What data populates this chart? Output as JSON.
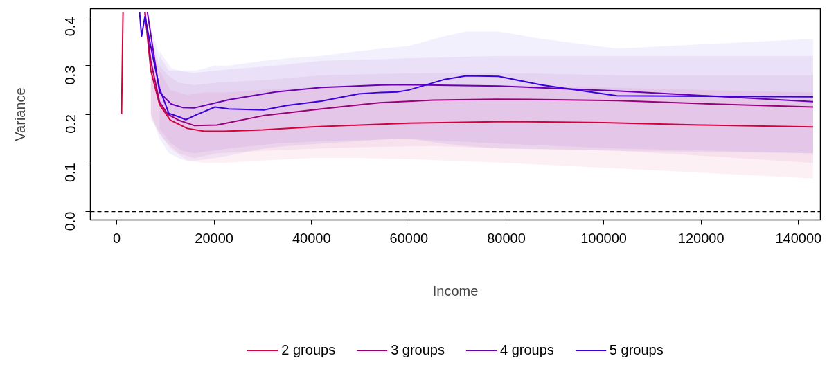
{
  "chart_data": {
    "type": "line",
    "xlabel": "Income",
    "ylabel": "Variance",
    "xlim": [
      -5400,
      144500
    ],
    "ylim": [
      -0.017,
      0.417
    ],
    "xticks": [
      0,
      20000,
      40000,
      60000,
      80000,
      100000,
      120000,
      140000
    ],
    "yticks": [
      {
        "value": 0,
        "label": "0.0"
      },
      0.1,
      0.2,
      0.3,
      0.4
    ],
    "grid": false,
    "legend": "bottom",
    "line_style": "solid",
    "marker": "none",
    "ref_lines": [
      {
        "axis": "y",
        "value": 0,
        "line_style": "dashed",
        "color": "#000000"
      }
    ],
    "series": [
      {
        "name": "2 groups",
        "color": "#d6003c",
        "x": [
          1000,
          1300,
          1400,
          5800,
          7000,
          8800,
          11000,
          14500,
          18000,
          22000,
          30000,
          40000,
          50000,
          60000,
          80000,
          100000,
          120000,
          143000
        ],
        "values": [
          0.2,
          0.41,
          null,
          0.41,
          0.29,
          0.22,
          0.188,
          0.171,
          0.165,
          0.165,
          0.168,
          0.174,
          0.178,
          0.182,
          0.185,
          0.183,
          0.178,
          0.174
        ],
        "lower": [
          null,
          null,
          null,
          null,
          0.2,
          0.16,
          0.13,
          0.105,
          0.1,
          0.1,
          0.105,
          0.11,
          0.11,
          0.108,
          0.1,
          0.09,
          0.08,
          0.068
        ],
        "upper": [
          null,
          null,
          null,
          null,
          0.35,
          0.29,
          0.25,
          0.24,
          0.245,
          0.245,
          0.25,
          0.255,
          0.258,
          0.26,
          0.26,
          0.255,
          0.25,
          0.245
        ]
      },
      {
        "name": "3 groups",
        "color": "#9c0078",
        "x": [
          5800,
          7000,
          8800,
          10500,
          12700,
          15900,
          20600,
          30000,
          42000,
          54000,
          65000,
          78000,
          90000,
          103000,
          120000,
          143000
        ],
        "values": [
          0.41,
          0.31,
          0.225,
          0.2,
          0.188,
          0.177,
          0.178,
          0.197,
          0.211,
          0.224,
          0.229,
          0.231,
          0.23,
          0.228,
          0.222,
          0.215
        ],
        "lower": [
          null,
          0.19,
          0.16,
          0.14,
          0.12,
          0.11,
          0.12,
          0.125,
          0.13,
          0.133,
          0.135,
          0.13,
          0.128,
          0.125,
          0.115,
          0.1
        ],
        "upper": [
          null,
          0.36,
          0.3,
          0.28,
          0.265,
          0.26,
          0.265,
          0.27,
          0.28,
          0.283,
          0.285,
          0.285,
          0.283,
          0.28,
          0.28,
          0.28
        ]
      },
      {
        "name": "4 groups",
        "color": "#6a00b4",
        "x": [
          6300,
          8800,
          11200,
          13500,
          15900,
          23000,
          32600,
          42000,
          54300,
          58900,
          78400,
          102700,
          143000
        ],
        "values": [
          0.41,
          0.245,
          0.221,
          0.214,
          0.213,
          0.23,
          0.246,
          0.255,
          0.26,
          0.261,
          0.258,
          0.248,
          0.226
        ],
        "lower": [
          null,
          0.17,
          0.14,
          0.125,
          0.12,
          0.13,
          0.14,
          0.145,
          0.148,
          0.15,
          0.14,
          0.13,
          0.12
        ],
        "upper": [
          null,
          0.33,
          0.295,
          0.288,
          0.285,
          0.292,
          0.3,
          0.31,
          0.313,
          0.315,
          0.32,
          0.32,
          0.32
        ]
      },
      {
        "name": "5 groups",
        "color": "#3a00e0",
        "x": [
          4700,
          5100,
          5800,
          7000,
          8800,
          10700,
          12700,
          14200,
          16400,
          20200,
          23000,
          30200,
          34900,
          42000,
          49700,
          54300,
          57600,
          60000,
          67100,
          71800,
          78400,
          87300,
          102700,
          143000
        ],
        "values": [
          0.41,
          0.36,
          0.401,
          0.339,
          0.253,
          0.202,
          0.195,
          0.189,
          0.199,
          0.215,
          0.211,
          0.209,
          0.218,
          0.227,
          0.242,
          0.245,
          0.246,
          0.25,
          0.271,
          0.279,
          0.278,
          0.26,
          0.238,
          0.236
        ],
        "lower": [
          null,
          null,
          null,
          0.2,
          0.15,
          0.12,
          0.11,
          0.105,
          0.105,
          0.11,
          0.115,
          0.13,
          0.135,
          0.14,
          0.145,
          0.148,
          0.15,
          0.15,
          0.14,
          0.135,
          0.13,
          0.128,
          0.125,
          0.12
        ],
        "upper": [
          null,
          null,
          null,
          0.38,
          0.32,
          0.29,
          0.29,
          0.29,
          0.29,
          0.3,
          0.3,
          0.31,
          0.315,
          0.32,
          0.33,
          0.335,
          0.338,
          0.34,
          0.36,
          0.37,
          0.37,
          0.355,
          0.335,
          0.355
        ]
      }
    ]
  }
}
